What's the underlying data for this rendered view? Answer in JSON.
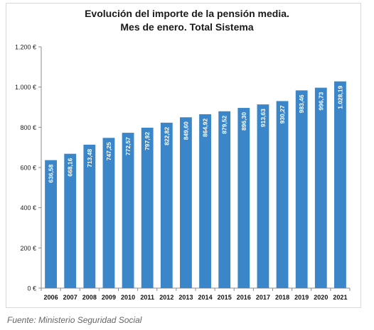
{
  "chart_data": {
    "type": "bar",
    "title_line1": "Evolución del importe de la pensión media.",
    "title_line2": "Mes de enero. Total Sistema",
    "categories": [
      "2006",
      "2007",
      "2008",
      "2009",
      "2010",
      "2011",
      "2012",
      "2013",
      "2014",
      "2015",
      "2016",
      "2017",
      "2018",
      "2019",
      "2020",
      "2021"
    ],
    "values": [
      636.58,
      668.16,
      713.48,
      747.25,
      772.57,
      797.92,
      822.82,
      849.6,
      864.92,
      879.52,
      896.3,
      913.63,
      930.27,
      983.46,
      996.73,
      1028.19
    ],
    "value_labels": [
      "636,58",
      "668,16",
      "713,48",
      "747,25",
      "772,57",
      "797,92",
      "822,82",
      "849,60",
      "864,92",
      "879,52",
      "896,30",
      "913,63",
      "930,27",
      "983,46",
      "996,73",
      "1.028,19"
    ],
    "ylim": [
      0,
      1200
    ],
    "yticks": [
      0,
      200,
      400,
      600,
      800,
      1000,
      1200
    ],
    "ytick_labels": [
      "0 €",
      "200 €",
      "400 €",
      "600 €",
      "800 €",
      "1.000 €",
      "1.200 €"
    ],
    "bar_color": "#3a86c8",
    "grid": false,
    "legend": "none"
  },
  "source": "Fuente: Ministerio Seguridad Social"
}
